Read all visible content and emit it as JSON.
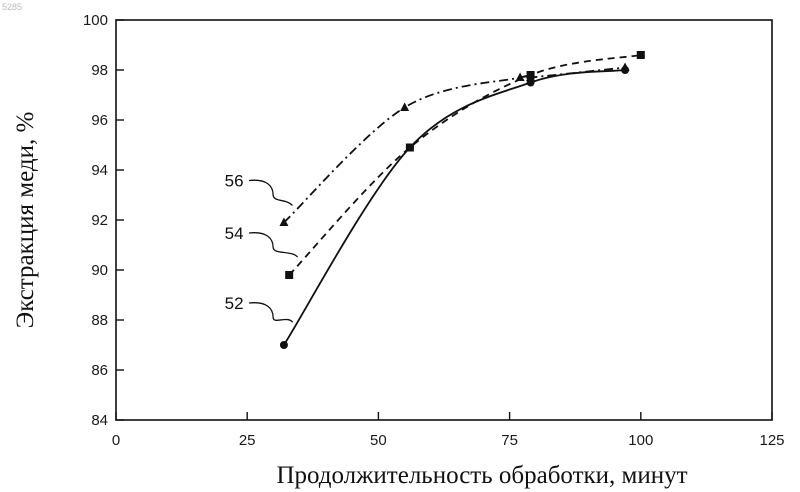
{
  "corner_mark": "5285",
  "chart_data": {
    "type": "line",
    "title": "",
    "xlabel": "Продолжительность обработки, минут",
    "ylabel": "Экстракция меди, %",
    "xlim": [
      0,
      125
    ],
    "ylim": [
      84,
      100
    ],
    "xticks": [
      0,
      25,
      50,
      75,
      100,
      125
    ],
    "yticks": [
      84,
      86,
      88,
      90,
      92,
      94,
      96,
      98,
      100
    ],
    "grid": false,
    "legend": "none",
    "series": [
      {
        "name": "56",
        "line_style": "dash-dot",
        "marker": "triangle",
        "x": [
          32,
          55,
          77,
          79,
          97
        ],
        "y": [
          91.9,
          96.5,
          97.7,
          97.7,
          98.1
        ]
      },
      {
        "name": "54",
        "line_style": "dashed",
        "marker": "square",
        "x": [
          33,
          56,
          79,
          100
        ],
        "y": [
          89.8,
          94.9,
          97.8,
          98.6
        ]
      },
      {
        "name": "52",
        "line_style": "solid",
        "marker": "circle",
        "x": [
          32,
          56,
          79,
          97
        ],
        "y": [
          87.0,
          94.9,
          97.5,
          98.0
        ]
      }
    ]
  }
}
